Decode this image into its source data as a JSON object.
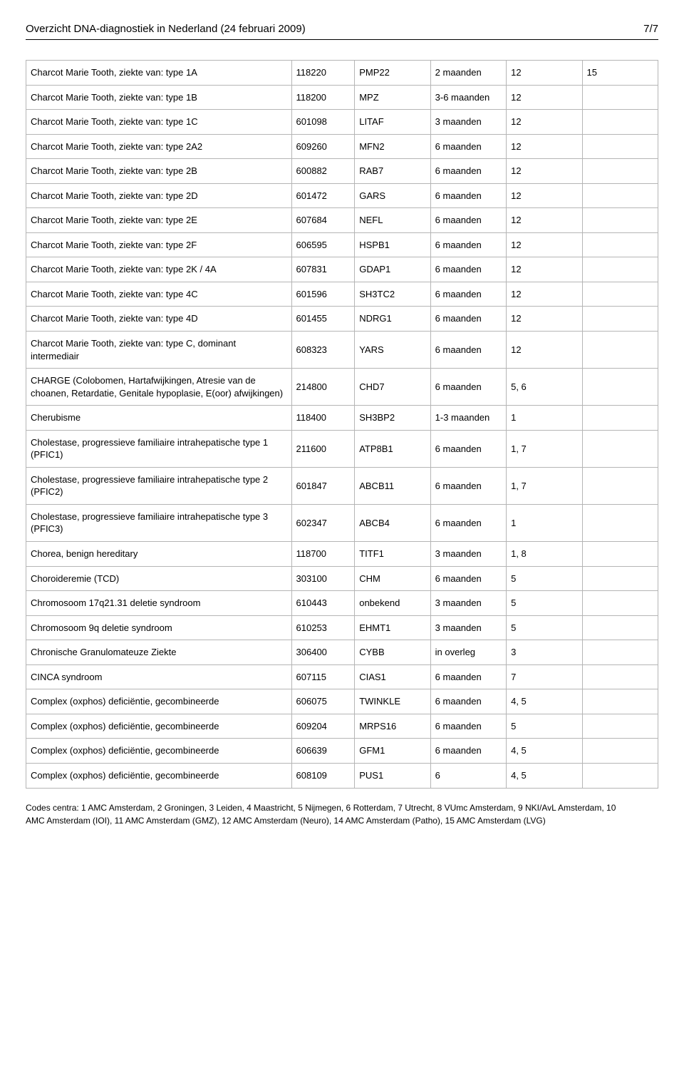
{
  "header": {
    "title": "Overzicht DNA-diagnostiek in Nederland (24 februari 2009)",
    "page": "7/7"
  },
  "table": {
    "rows": [
      {
        "name": "Charcot Marie Tooth, ziekte van: type 1A",
        "omim": "118220",
        "gene": "PMP22",
        "duration": "2 maanden",
        "centres": "12",
        "extra": "15"
      },
      {
        "name": "Charcot Marie Tooth, ziekte van: type 1B",
        "omim": "118200",
        "gene": "MPZ",
        "duration": "3-6 maanden",
        "centres": "12",
        "extra": ""
      },
      {
        "name": "Charcot Marie Tooth, ziekte van: type 1C",
        "omim": "601098",
        "gene": "LITAF",
        "duration": "3 maanden",
        "centres": "12",
        "extra": ""
      },
      {
        "name": "Charcot Marie Tooth, ziekte van: type 2A2",
        "omim": "609260",
        "gene": "MFN2",
        "duration": "6 maanden",
        "centres": "12",
        "extra": ""
      },
      {
        "name": "Charcot Marie Tooth, ziekte van: type 2B",
        "omim": "600882",
        "gene": "RAB7",
        "duration": "6 maanden",
        "centres": "12",
        "extra": ""
      },
      {
        "name": "Charcot Marie Tooth, ziekte van: type 2D",
        "omim": "601472",
        "gene": "GARS",
        "duration": "6 maanden",
        "centres": "12",
        "extra": ""
      },
      {
        "name": "Charcot Marie Tooth, ziekte van: type 2E",
        "omim": "607684",
        "gene": "NEFL",
        "duration": "6 maanden",
        "centres": "12",
        "extra": ""
      },
      {
        "name": "Charcot Marie Tooth, ziekte van: type 2F",
        "omim": "606595",
        "gene": "HSPB1",
        "duration": "6 maanden",
        "centres": "12",
        "extra": ""
      },
      {
        "name": "Charcot Marie Tooth, ziekte van: type 2K / 4A",
        "omim": "607831",
        "gene": "GDAP1",
        "duration": "6 maanden",
        "centres": "12",
        "extra": ""
      },
      {
        "name": "Charcot Marie Tooth, ziekte van: type 4C",
        "omim": "601596",
        "gene": "SH3TC2",
        "duration": "6 maanden",
        "centres": "12",
        "extra": ""
      },
      {
        "name": "Charcot Marie Tooth, ziekte van: type 4D",
        "omim": "601455",
        "gene": "NDRG1",
        "duration": "6 maanden",
        "centres": "12",
        "extra": ""
      },
      {
        "name": "Charcot Marie Tooth, ziekte van: type C, dominant intermediair",
        "omim": "608323",
        "gene": "YARS",
        "duration": "6 maanden",
        "centres": "12",
        "extra": ""
      },
      {
        "name": "CHARGE (Colobomen, Hartafwijkingen, Atresie van de choanen, Retardatie, Genitale hypoplasie, E(oor) afwijkingen)",
        "omim": "214800",
        "gene": "CHD7",
        "duration": "6 maanden",
        "centres": "5, 6",
        "extra": ""
      },
      {
        "name": "Cherubisme",
        "omim": "118400",
        "gene": "SH3BP2",
        "duration": "1-3 maanden",
        "centres": "1",
        "extra": ""
      },
      {
        "name": "Cholestase, progressieve familiaire intrahepatische type 1 (PFIC1)",
        "omim": "211600",
        "gene": "ATP8B1",
        "duration": "6 maanden",
        "centres": "1, 7",
        "extra": ""
      },
      {
        "name": "Cholestase, progressieve familiaire intrahepatische type 2 (PFIC2)",
        "omim": "601847",
        "gene": "ABCB11",
        "duration": "6 maanden",
        "centres": "1, 7",
        "extra": ""
      },
      {
        "name": "Cholestase, progressieve familiaire intrahepatische type 3 (PFIC3)",
        "omim": "602347",
        "gene": "ABCB4",
        "duration": "6 maanden",
        "centres": "1",
        "extra": ""
      },
      {
        "name": "Chorea, benign hereditary",
        "omim": "118700",
        "gene": "TITF1",
        "duration": "3 maanden",
        "centres": "1, 8",
        "extra": ""
      },
      {
        "name": "Choroideremie (TCD)",
        "omim": "303100",
        "gene": "CHM",
        "duration": "6 maanden",
        "centres": "5",
        "extra": ""
      },
      {
        "name": "Chromosoom 17q21.31 deletie syndroom",
        "omim": "610443",
        "gene": "onbekend",
        "duration": "3 maanden",
        "centres": "5",
        "extra": ""
      },
      {
        "name": "Chromosoom 9q deletie syndroom",
        "omim": "610253",
        "gene": "EHMT1",
        "duration": "3 maanden",
        "centres": "5",
        "extra": ""
      },
      {
        "name": "Chronische Granulomateuze Ziekte",
        "omim": "306400",
        "gene": "CYBB",
        "duration": "in overleg",
        "centres": "3",
        "extra": ""
      },
      {
        "name": "CINCA syndroom",
        "omim": "607115",
        "gene": "CIAS1",
        "duration": "6 maanden",
        "centres": "7",
        "extra": ""
      },
      {
        "name": "Complex (oxphos) deficiëntie, gecombineerde",
        "omim": "606075",
        "gene": "TWINKLE",
        "duration": "6 maanden",
        "centres": "4, 5",
        "extra": ""
      },
      {
        "name": "Complex (oxphos) deficiëntie, gecombineerde",
        "omim": "609204",
        "gene": "MRPS16",
        "duration": "6 maanden",
        "centres": "5",
        "extra": ""
      },
      {
        "name": "Complex (oxphos) deficiëntie, gecombineerde",
        "omim": "606639",
        "gene": "GFM1",
        "duration": "6 maanden",
        "centres": "4, 5",
        "extra": ""
      },
      {
        "name": "Complex (oxphos) deficiëntie, gecombineerde",
        "omim": "608109",
        "gene": "PUS1",
        "duration": "6",
        "centres": "4, 5",
        "extra": ""
      }
    ]
  },
  "footer": {
    "line1": "Codes centra: 1 AMC Amsterdam, 2 Groningen, 3 Leiden, 4 Maastricht, 5 Nijmegen, 6 Rotterdam, 7 Utrecht, 8 VUmc Amsterdam, 9 NKI/AvL Amsterdam, 10",
    "line2": "AMC Amsterdam (IOI), 11 AMC Amsterdam (GMZ), 12 AMC Amsterdam (Neuro), 14 AMC Amsterdam (Patho), 15 AMC Amsterdam (LVG)"
  },
  "style": {
    "border_color": "#b5b5b5",
    "text_color": "#000000",
    "background_color": "#ffffff",
    "font_family": "Arial, Helvetica, sans-serif",
    "header_fontsize": 15,
    "cell_fontsize": 13,
    "footer_fontsize": 12
  }
}
